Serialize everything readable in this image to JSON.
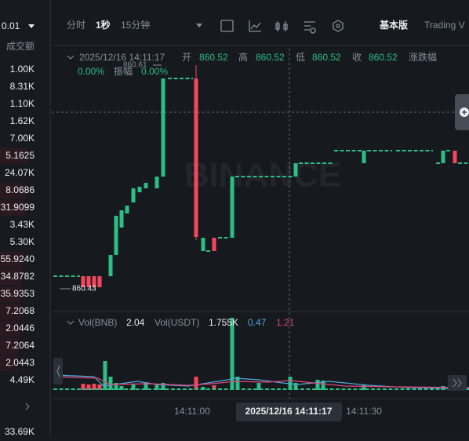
{
  "left_panel": {
    "precision": "0.01",
    "header": "成交额",
    "values": [
      "1.00K",
      "8.31K",
      "1.10K",
      "1.62K",
      "7.00K",
      "5.1625",
      "24.07K",
      "8.0686",
      "31.9099",
      "3.43K",
      "5.30K",
      "55.9240",
      "34.8782",
      "35.9353",
      "7.2068",
      "2.0446",
      "7.2064",
      "2.0443",
      "4.49K"
    ],
    "footer": "33.69K"
  },
  "toolbar": {
    "intervals": [
      "分时",
      "1秒",
      "15分钟"
    ],
    "views": [
      "基本版",
      "Trading V"
    ]
  },
  "info": {
    "datetime": "2025/12/16 14:11:17",
    "open_label": "开",
    "open": "860.52",
    "high_label": "高",
    "high": "860.52",
    "low_label": "低",
    "low": "860.52",
    "close_label": "收",
    "close": "860.52",
    "change_label": "涨跌幅",
    "change": "0.00%",
    "amplitude_label": "振幅",
    "amplitude": "0.00%"
  },
  "price_marks": {
    "max": "860.61",
    "min": "860.43"
  },
  "watermark": "BINANCE",
  "volume": {
    "base_label": "Vol(BNB)",
    "base": "2.04",
    "quote_label": "Vol(USDT)",
    "quote": "1.755K",
    "ma1": "0.47",
    "ma2": "1.21"
  },
  "time_axis": {
    "labels": [
      "14:11:00",
      "14:11:30"
    ],
    "crosshair": "2025/12/16 14:11:17"
  }
}
